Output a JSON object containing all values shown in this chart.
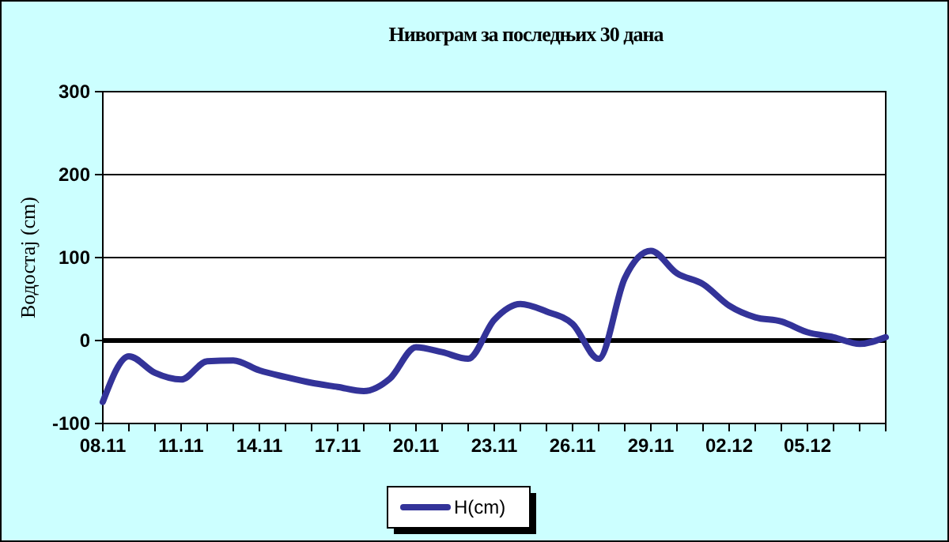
{
  "chart_data": {
    "type": "line",
    "title": "Нивограм за последњих 30 дана",
    "ylabel": "Водостај (cm)",
    "categories": [
      "08.11",
      null,
      null,
      "11.11",
      null,
      null,
      "14.11",
      null,
      null,
      "17.11",
      null,
      null,
      "20.11",
      null,
      null,
      "23.11",
      null,
      null,
      "26.11",
      null,
      null,
      "29.11",
      null,
      null,
      "02.12",
      null,
      null,
      "05.12",
      null,
      null,
      null
    ],
    "series": [
      {
        "name": "H(cm)",
        "color": "#333399",
        "values": [
          -74,
          -19,
          -39,
          -47,
          -25,
          -24,
          -36,
          -44,
          -51,
          -56,
          -61,
          -46,
          -8,
          -14,
          -22,
          25,
          44,
          35,
          20,
          -22,
          75,
          108,
          81,
          68,
          42,
          28,
          23,
          10,
          4,
          -4,
          4
        ]
      }
    ],
    "ylim": [
      -100,
      300
    ],
    "yticks": [
      -100,
      0,
      100,
      200,
      300
    ],
    "grid": "y",
    "legend": "bottom",
    "marker": "none",
    "line_style": "solid",
    "ref_lines": [
      {
        "axis": "y",
        "value": 0,
        "color": "#000000"
      }
    ]
  }
}
